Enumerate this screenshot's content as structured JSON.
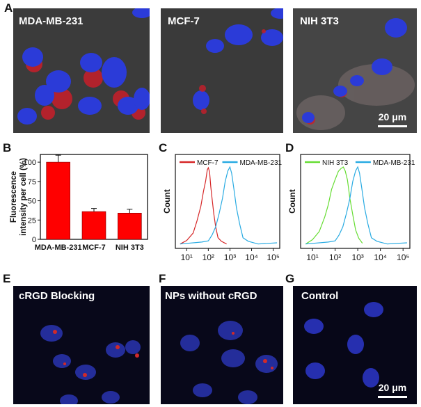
{
  "panel_letters": {
    "A": "A",
    "B": "B",
    "C": "C",
    "D": "D",
    "E": "E",
    "F": "F",
    "G": "G"
  },
  "top_row": [
    {
      "label": "MDA-MB-231"
    },
    {
      "label": "MCF-7"
    },
    {
      "label": "NIH 3T3",
      "scale": "20 μm"
    }
  ],
  "bottom_row": [
    {
      "label": "cRGD Blocking"
    },
    {
      "label": "NPs without cRGD"
    },
    {
      "label": "Control",
      "scale": "20 μm"
    }
  ],
  "colors": {
    "bar": "#ff0000",
    "mcf7": "#d62728",
    "mda": "#29abe2",
    "nih": "#66dd33"
  },
  "chart_data": [
    {
      "type": "bar",
      "categories": [
        "MDA-MB-231",
        "MCF-7",
        "NIH 3T3"
      ],
      "values": [
        100,
        36,
        34
      ],
      "errors": [
        9,
        4,
        5
      ],
      "ylabel": "Fluorescence intensity per cell (%)",
      "ylim": [
        0,
        110
      ],
      "yticks": [
        "0",
        "25",
        "50",
        "75",
        "100"
      ]
    },
    {
      "type": "line",
      "xscale": "log",
      "xlim": [
        3,
        200000
      ],
      "ylabel": "Count",
      "xticks": [
        "10¹",
        "10²",
        "10³",
        "10⁴",
        "10⁵"
      ],
      "series": [
        {
          "name": "MCF-7",
          "color": "#d62728",
          "x": [
            5,
            10,
            20,
            30,
            45,
            60,
            75,
            90,
            100,
            115,
            130,
            150,
            180,
            220,
            280,
            400,
            700
          ],
          "y": [
            0.02,
            0.05,
            0.16,
            0.3,
            0.5,
            0.68,
            0.82,
            0.95,
            0.99,
            0.92,
            0.75,
            0.58,
            0.4,
            0.22,
            0.1,
            0.04,
            0.02
          ]
        },
        {
          "name": "MDA-MB-231",
          "color": "#29abe2",
          "x": [
            5,
            50,
            100,
            150,
            220,
            320,
            450,
            600,
            800,
            1000,
            1200,
            1500,
            2000,
            2800,
            4000,
            7000,
            20000,
            150000
          ],
          "y": [
            0.02,
            0.03,
            0.06,
            0.12,
            0.24,
            0.4,
            0.6,
            0.8,
            0.95,
            1.0,
            0.92,
            0.72,
            0.48,
            0.26,
            0.1,
            0.04,
            0.02,
            0.02
          ]
        }
      ]
    },
    {
      "type": "line",
      "xscale": "log",
      "xlim": [
        3,
        200000
      ],
      "ylabel": "Count",
      "xticks": [
        "10¹",
        "10²",
        "10³",
        "10⁴",
        "10⁵"
      ],
      "series": [
        {
          "name": "NIH 3T3",
          "color": "#66dd33",
          "x": [
            5,
            10,
            20,
            35,
            50,
            70,
            100,
            140,
            180,
            230,
            280,
            350,
            450,
            600,
            800,
            1100,
            1600
          ],
          "y": [
            0.02,
            0.06,
            0.18,
            0.35,
            0.52,
            0.7,
            0.84,
            0.93,
            0.98,
            1.0,
            0.95,
            0.82,
            0.6,
            0.38,
            0.2,
            0.08,
            0.03
          ]
        },
        {
          "name": "MDA-MB-231",
          "color": "#29abe2",
          "x": [
            5,
            50,
            100,
            150,
            220,
            320,
            450,
            600,
            800,
            1000,
            1200,
            1500,
            2000,
            2800,
            4000,
            7000,
            20000,
            150000
          ],
          "y": [
            0.02,
            0.03,
            0.06,
            0.12,
            0.24,
            0.4,
            0.6,
            0.8,
            0.95,
            1.0,
            0.92,
            0.72,
            0.48,
            0.26,
            0.1,
            0.04,
            0.02,
            0.02
          ]
        }
      ]
    }
  ]
}
